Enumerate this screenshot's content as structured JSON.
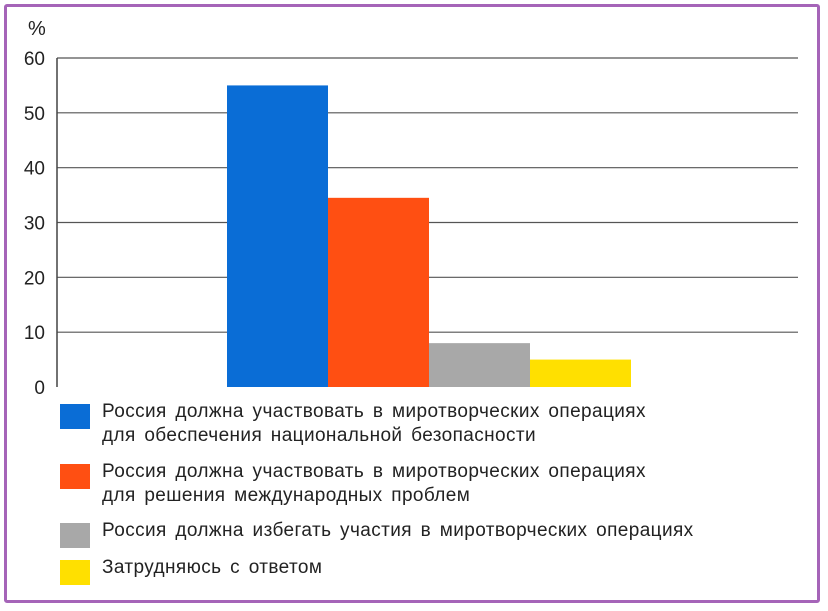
{
  "chart_data": {
    "type": "bar",
    "y_unit": "%",
    "ylim": [
      0,
      60
    ],
    "yticks": [
      "0",
      "10",
      "20",
      "30",
      "40",
      "50",
      "60"
    ],
    "grid": true,
    "legend_position": "bottom",
    "series": [
      {
        "name": "Россия должна участвовать в миротворческих операциях\nдля обеспечения национальной безопасности",
        "value": 55,
        "color": "#0a6dd6"
      },
      {
        "name": "Россия должна участвовать в миротворческих операциях\nдля решения международных проблем",
        "value": 34.5,
        "color": "#ff4f12"
      },
      {
        "name": "Россия должна избегать участия в миротворческих операциях",
        "value": 8,
        "color": "#a8a8a8"
      },
      {
        "name": "Затрудняюсь с ответом",
        "value": 5,
        "color": "#ffe000"
      }
    ]
  }
}
